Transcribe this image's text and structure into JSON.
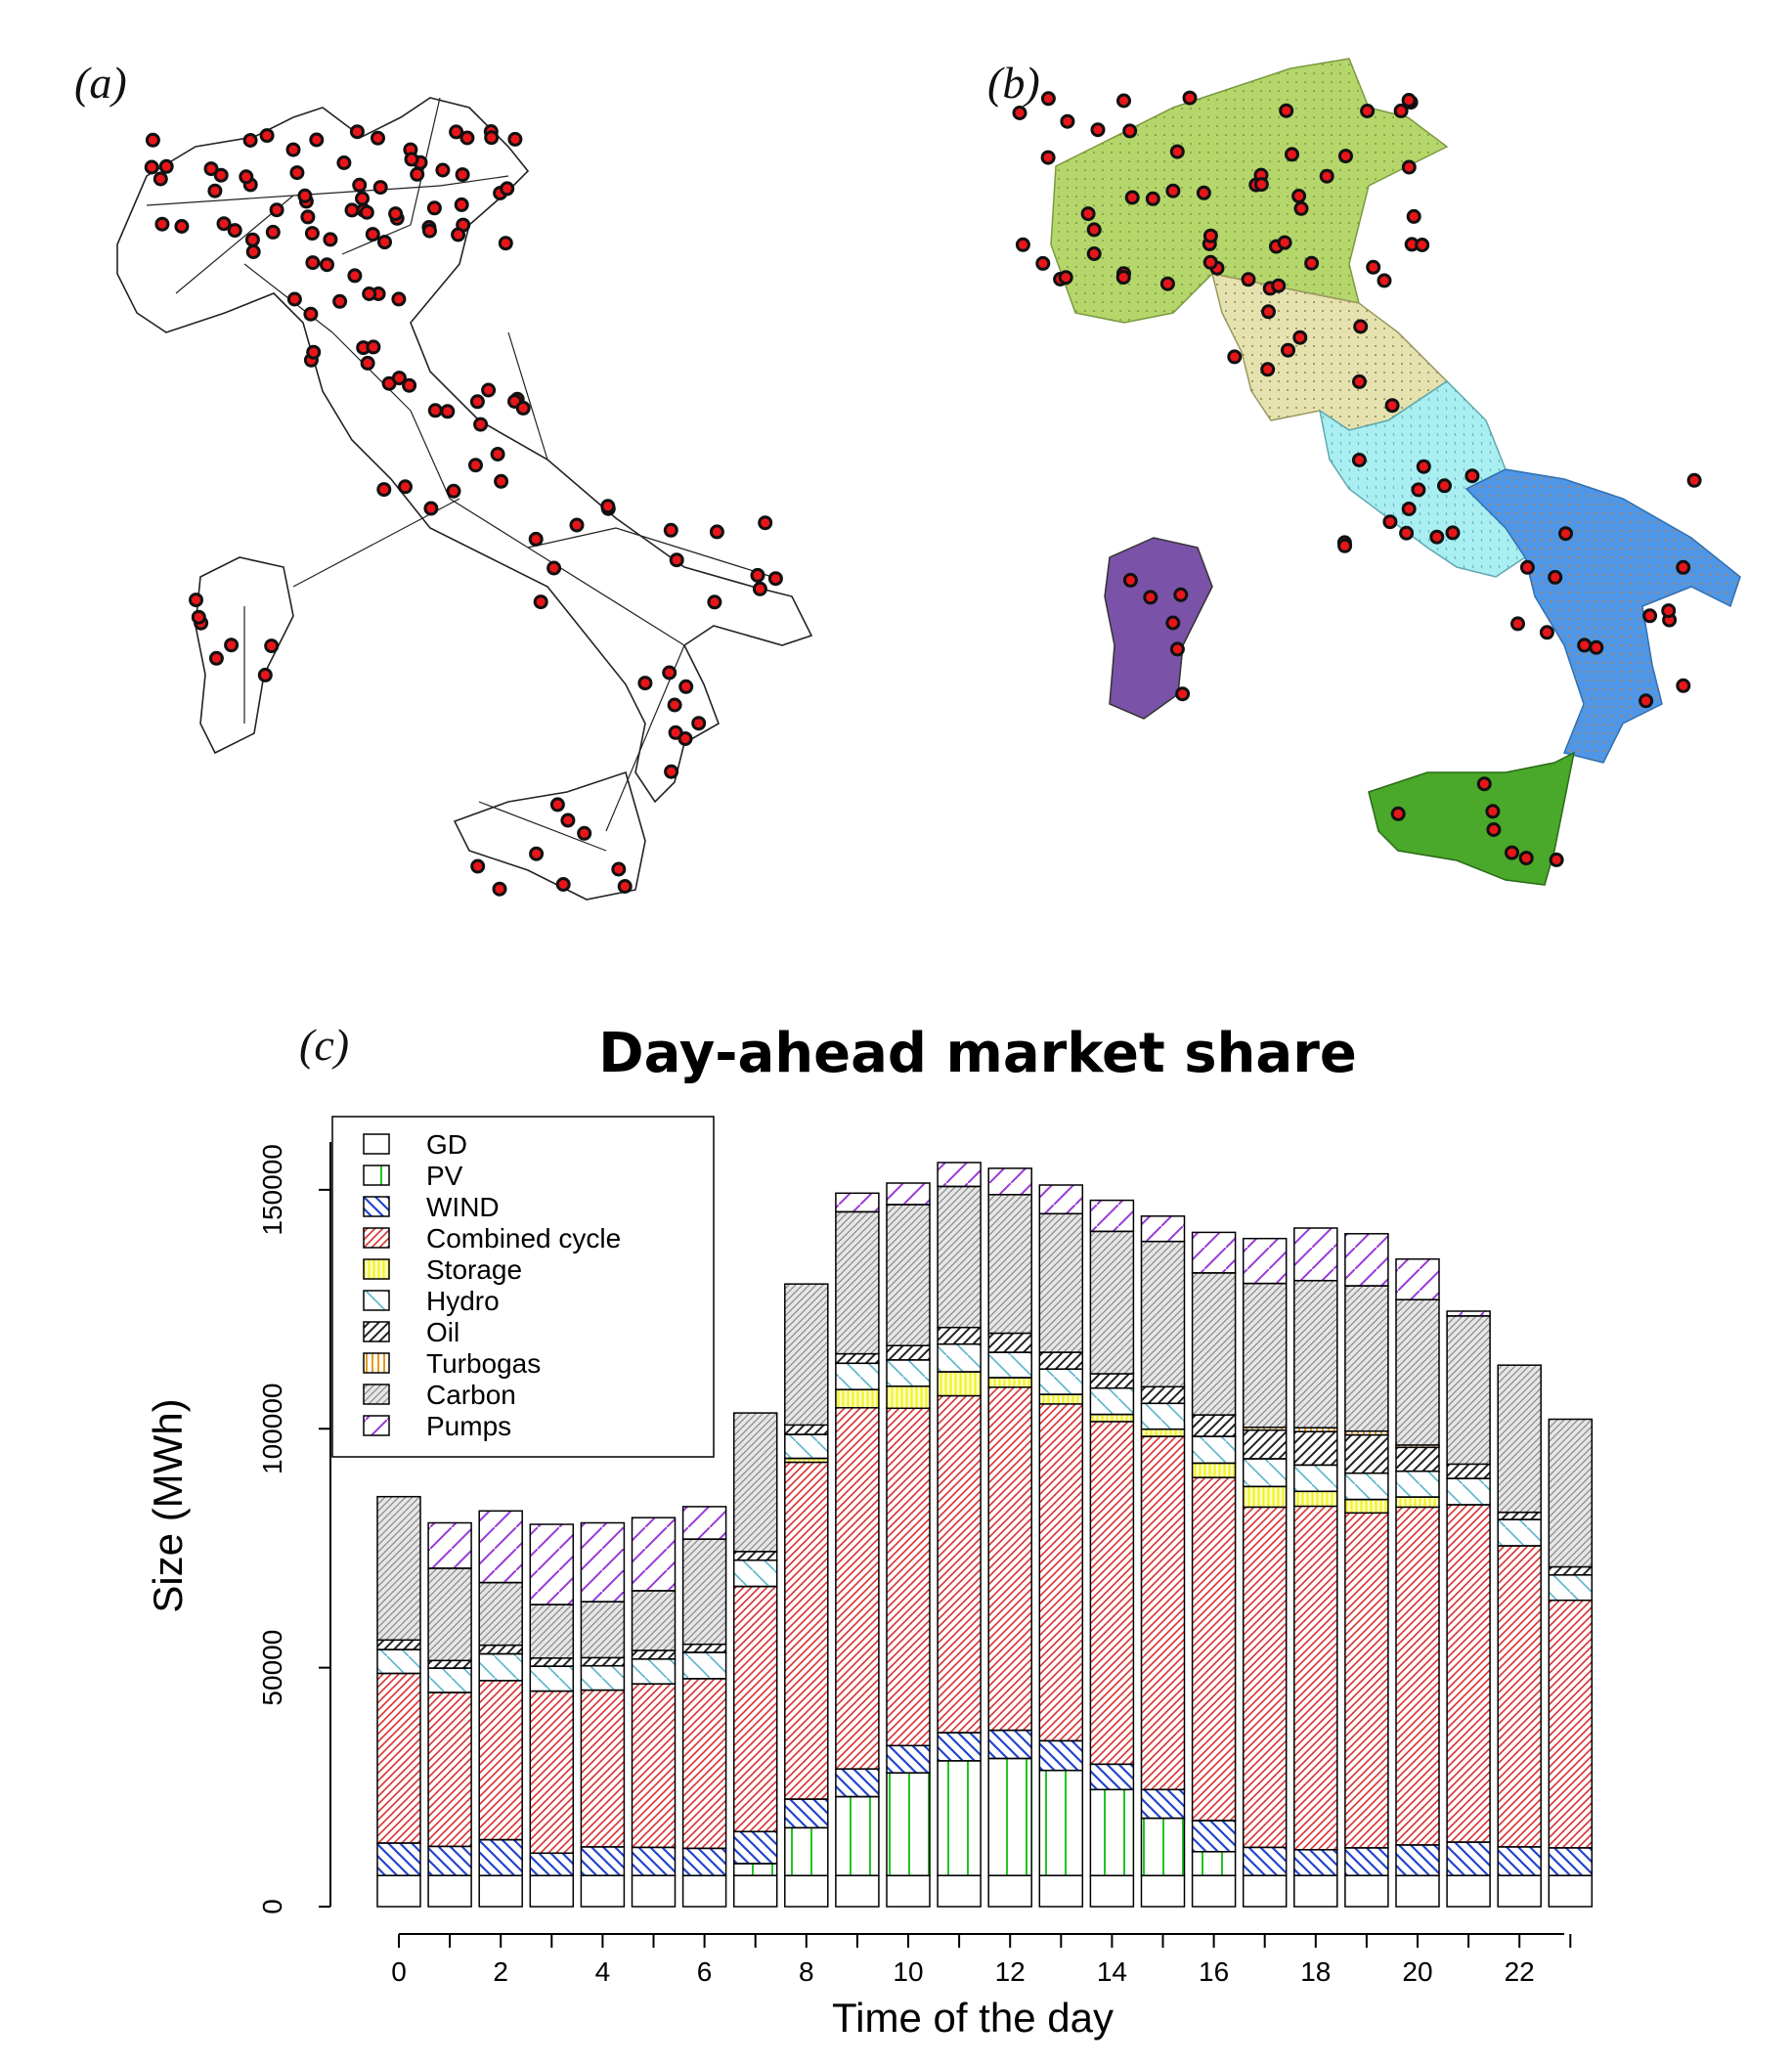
{
  "panels": {
    "a_label": "(a)",
    "b_label": "(b)",
    "c_label": "(c)"
  },
  "colors": {
    "node_fill": "#e8161a",
    "node_ring": "#111111",
    "zone_north": "#b5d66b",
    "zone_centre_north": "#e6e2b0",
    "zone_centre_south": "#a9eef0",
    "zone_south": "#4f96e6",
    "zone_sardinia": "#7a52a8",
    "zone_sicily": "#4aa82a",
    "pv": "#22c422",
    "wind": "#2244cc",
    "combined_cycle": "#d93030",
    "storage": "#f3f321",
    "hydro": "#58b4c8",
    "oil": "#222222",
    "turbogas": "#e89a1a",
    "carbon": "#888888",
    "pumps": "#9a38d8"
  },
  "chart_data": {
    "type": "bar",
    "stacked": true,
    "title": "Day-ahead market share",
    "xlabel": "Time of the day",
    "ylabel": "Size (MWh)",
    "ylim": [
      0,
      160000
    ],
    "yticks": [
      0,
      50000,
      100000,
      150000
    ],
    "xticks": [
      0,
      2,
      4,
      6,
      8,
      10,
      12,
      14,
      16,
      18,
      20,
      22
    ],
    "categories": [
      0,
      1,
      2,
      3,
      4,
      5,
      6,
      7,
      8,
      9,
      10,
      11,
      12,
      13,
      14,
      15,
      16,
      17,
      18,
      19,
      20,
      21,
      22,
      23
    ],
    "legend_position": "top-left",
    "series": [
      {
        "name": "GD",
        "pattern": "none",
        "color": "#ffffff",
        "values": [
          6500,
          6500,
          6500,
          6500,
          6500,
          6500,
          6500,
          6500,
          6500,
          6500,
          6500,
          6500,
          6500,
          6500,
          6500,
          6500,
          6500,
          6500,
          6500,
          6500,
          6500,
          6500,
          6500,
          6500
        ]
      },
      {
        "name": "PV",
        "pattern": "vertical",
        "color": "#22c422",
        "values": [
          0,
          0,
          0,
          0,
          0,
          0,
          0,
          2500,
          10000,
          16500,
          21500,
          24000,
          24500,
          22000,
          18000,
          12000,
          5000,
          0,
          0,
          0,
          0,
          0,
          0,
          0
        ]
      },
      {
        "name": "WIND",
        "pattern": "diag-down",
        "color": "#2244cc",
        "values": [
          6800,
          6100,
          7500,
          4700,
          6000,
          5900,
          5700,
          6700,
          6000,
          5800,
          5700,
          5900,
          5900,
          6200,
          5300,
          6000,
          6500,
          5900,
          5400,
          5800,
          6400,
          7000,
          6000,
          5800
        ]
      },
      {
        "name": "Combined cycle",
        "pattern": "diag-up-dense",
        "color": "#d93030",
        "values": [
          35500,
          32200,
          33300,
          33900,
          32800,
          34200,
          35500,
          51300,
          70500,
          75600,
          70600,
          70500,
          71800,
          70500,
          71700,
          73900,
          71800,
          71200,
          71900,
          70100,
          70700,
          70600,
          63000,
          51800
        ]
      },
      {
        "name": "Storage",
        "pattern": "vertical-dense",
        "color": "#f3f321",
        "values": [
          0,
          0,
          0,
          0,
          0,
          0,
          0,
          0,
          800,
          3800,
          4600,
          5000,
          2000,
          2000,
          1500,
          1500,
          3000,
          4300,
          3100,
          2800,
          2100,
          0,
          0,
          0
        ]
      },
      {
        "name": "Hydro",
        "pattern": "diag-down",
        "color": "#58b4c8",
        "values": [
          5000,
          5100,
          5600,
          5200,
          5100,
          5200,
          5500,
          5500,
          5000,
          5500,
          5500,
          5800,
          5300,
          5300,
          5500,
          5400,
          5600,
          5800,
          5500,
          5500,
          5400,
          5500,
          5500,
          5300
        ]
      },
      {
        "name": "Oil",
        "pattern": "diag-up",
        "color": "#222222",
        "values": [
          2000,
          1600,
          1800,
          1700,
          1700,
          1800,
          1700,
          1800,
          2000,
          2000,
          3000,
          3500,
          4000,
          3500,
          3000,
          3500,
          4500,
          6000,
          7000,
          8000,
          5000,
          3000,
          1500,
          1700
        ]
      },
      {
        "name": "Turbogas",
        "pattern": "vertical",
        "color": "#e89a1a",
        "values": [
          0,
          0,
          0,
          0,
          0,
          0,
          0,
          0,
          0,
          0,
          0,
          0,
          0,
          0,
          0,
          0,
          0,
          600,
          800,
          800,
          500,
          0,
          0,
          0
        ]
      },
      {
        "name": "Carbon",
        "pattern": "diag-up",
        "color": "#888888",
        "values": [
          30000,
          19300,
          13100,
          11200,
          11700,
          12500,
          22000,
          29000,
          29500,
          29700,
          29500,
          29500,
          29000,
          29000,
          29800,
          30400,
          29700,
          30100,
          30800,
          30400,
          30400,
          31000,
          30800,
          30900
        ]
      },
      {
        "name": "Pumps",
        "pattern": "diag-up-sparse",
        "color": "#9a38d8",
        "values": [
          0,
          9500,
          15000,
          16800,
          16500,
          15300,
          6800,
          0,
          0,
          3900,
          4500,
          5000,
          5500,
          6000,
          6500,
          5300,
          8500,
          9400,
          11000,
          10900,
          8500,
          1000,
          0,
          0
        ]
      }
    ]
  }
}
